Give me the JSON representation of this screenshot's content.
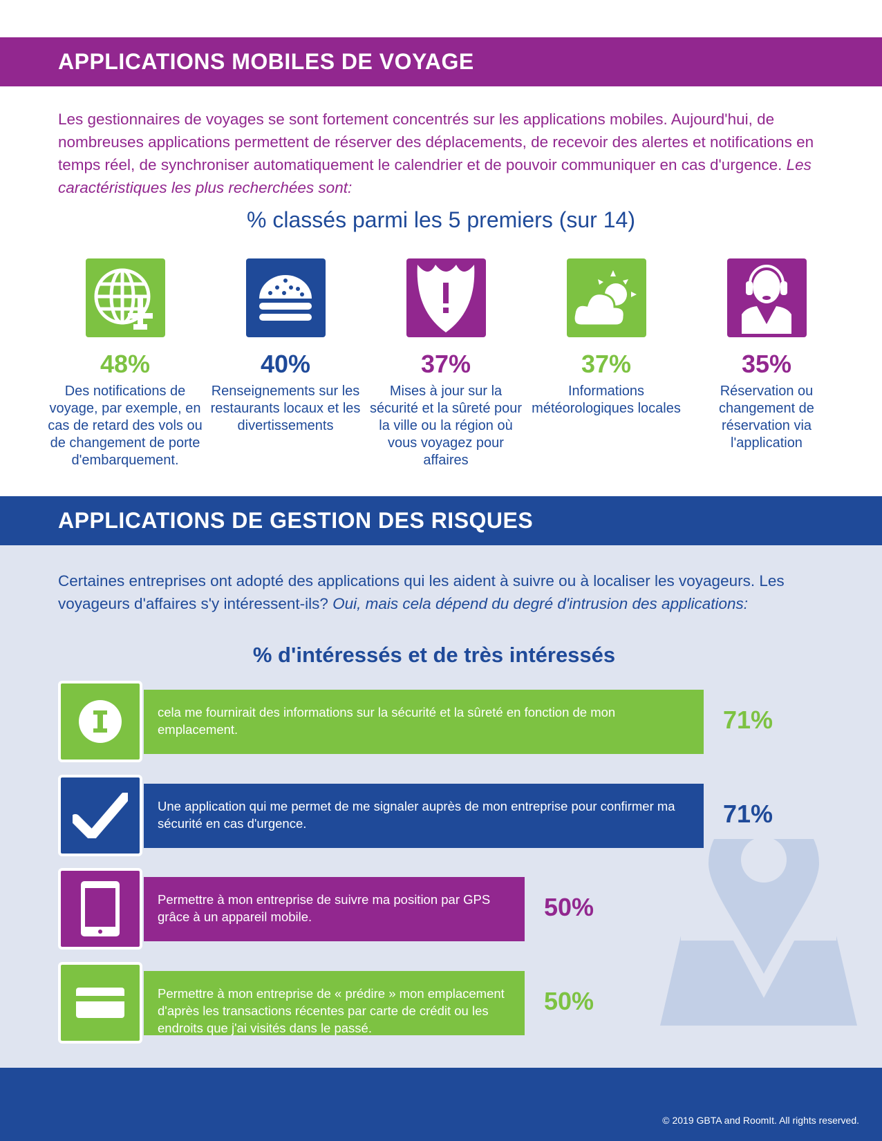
{
  "colors": {
    "purple": "#92278f",
    "blue": "#1f4a99",
    "green": "#7dc242",
    "light_bg": "#dfe4f0",
    "map_icon": "#c2cfe6"
  },
  "section1": {
    "title": "APPLICATIONS MOBILES DE VOYAGE",
    "intro": "Les gestionnaires de voyages se sont fortement concentrés sur les applications mobiles. Aujourd'hui, de nombreuses applications permettent de réserver des déplacements, de recevoir des alertes et notifications en temps réel, de synchroniser automatiquement le calendrier et de pouvoir communiquer en cas d'urgence.",
    "intro_italic": "Les caractéristiques les plus recherchées sont:",
    "subtitle": "% classés parmi les 5 premiers (sur 14)",
    "features": [
      {
        "icon": "globe-plane-icon",
        "pct": "48%",
        "desc": "Des notifications de voyage, par exemple, en cas de retard des vols ou de changement de porte d'embarquement.",
        "color": "#7dc242"
      },
      {
        "icon": "burger-icon",
        "pct": "40%",
        "desc": "Renseignements sur les restaurants locaux et les divertissements",
        "color": "#1f4a99"
      },
      {
        "icon": "shield-alert-icon",
        "pct": "37%",
        "desc": "Mises à jour sur la sécurité et la sûreté pour la ville ou la région où vous voyagez pour affaires",
        "color": "#92278f"
      },
      {
        "icon": "weather-icon",
        "pct": "37%",
        "desc": "Informations météorologiques locales",
        "color": "#7dc242"
      },
      {
        "icon": "agent-headset-icon",
        "pct": "35%",
        "desc": "Réservation ou changement de réservation via l'application",
        "color": "#92278f"
      }
    ]
  },
  "section2": {
    "title": "APPLICATIONS DE GESTION DES RISQUES",
    "intro": "Certaines entreprises ont adopté des applications qui les aident à suivre ou à localiser les voyageurs. Les voyageurs d'affaires s'y intéressent-ils?",
    "intro_italic": "Oui, mais cela dépend du degré d'intrusion des applications:",
    "subtitle": "% d'intéressés et de très intéressés"
  },
  "chart_data": {
    "type": "bar",
    "orientation": "horizontal",
    "title": "% d'intéressés et de très intéressés",
    "unit": "%",
    "categories": [
      "cela me fournirait des informations sur la sécurité et la sûreté en fonction de mon emplacement.",
      "Une application qui me permet de me signaler auprès de mon entreprise pour confirmer ma sécurité en cas d'urgence.",
      "Permettre à mon entreprise de suivre ma position par GPS grâce à un appareil mobile.",
      "Permettre à mon entreprise de « prédire » mon emplacement d'après les transactions récentes par carte de crédit ou les endroits que j'ai visités dans le passé."
    ],
    "values": [
      71,
      71,
      50,
      50
    ],
    "labels": [
      "71%",
      "71%",
      "50%",
      "50%"
    ],
    "bar_colors": [
      "#7dc242",
      "#1f4a99",
      "#92278f",
      "#7dc242"
    ],
    "icons": [
      "info-icon",
      "checkmark-icon",
      "tablet-icon",
      "credit-card-icon"
    ]
  },
  "footer": {
    "copyright": "© 2019 GBTA and RoomIt. All rights reserved."
  }
}
